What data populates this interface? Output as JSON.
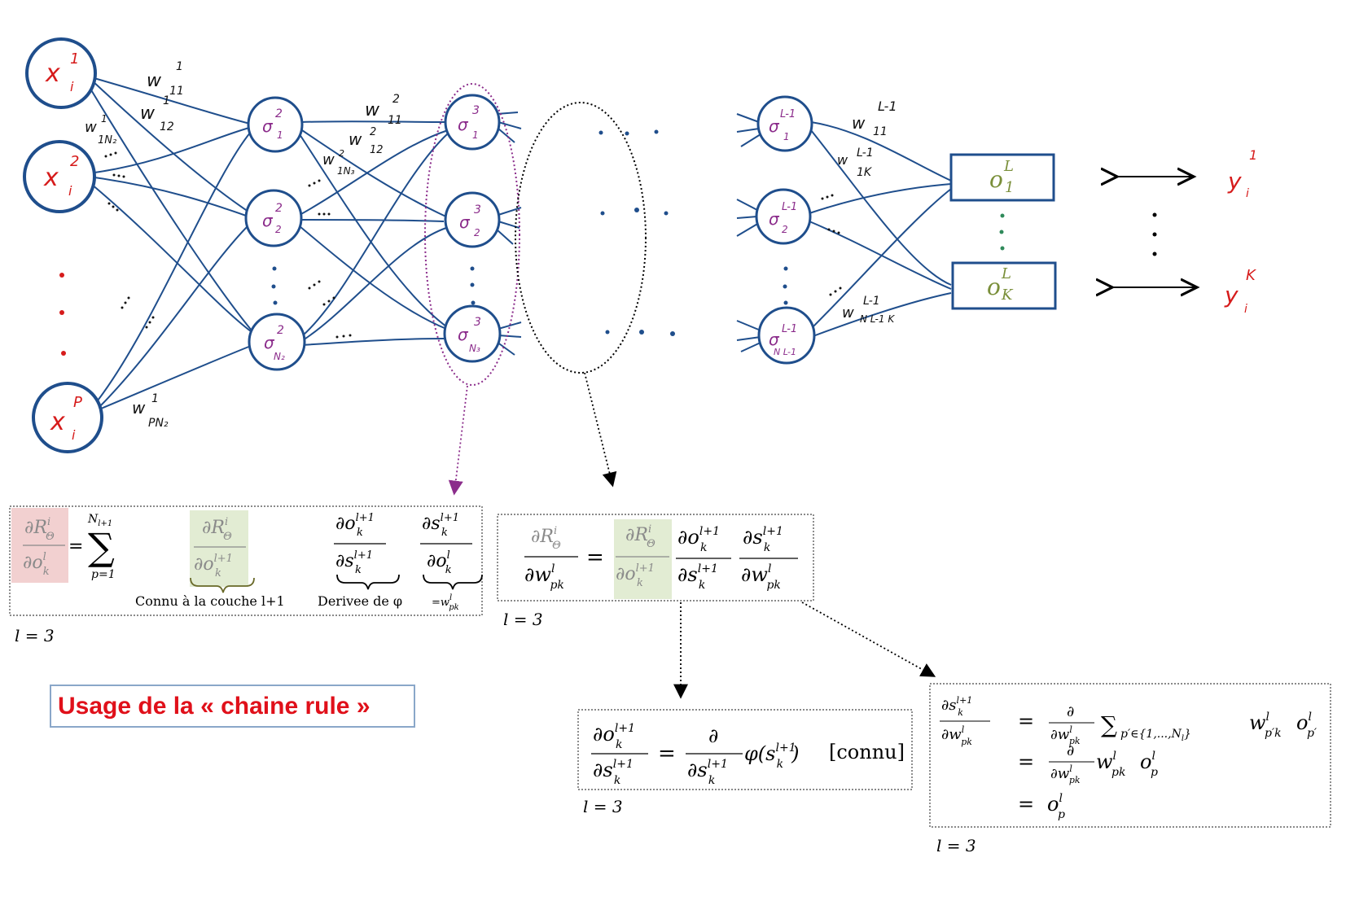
{
  "colors": {
    "network": "#1f4e8c",
    "input_label": "#d61b1b",
    "hidden_label": "#8b2c8b",
    "output_label": "#7a8f3a",
    "pink_highlight": "#f2d0d0",
    "green_highlight": "#e2ecd3",
    "usage_text": "#e0101a"
  },
  "network": {
    "inputs": [
      {
        "sym": "x",
        "sup": "1",
        "sub": "i"
      },
      {
        "sym": "x",
        "sup": "2",
        "sub": "i"
      },
      {
        "sym": "x",
        "sup": "P",
        "sub": "i"
      }
    ],
    "layer2": [
      {
        "sym": "σ",
        "sup": "2",
        "sub": "1"
      },
      {
        "sym": "σ",
        "sup": "2",
        "sub": "2"
      },
      {
        "sym": "σ",
        "sup": "2",
        "sub": "N₂"
      }
    ],
    "layer3": [
      {
        "sym": "σ",
        "sup": "3",
        "sub": "1"
      },
      {
        "sym": "σ",
        "sup": "3",
        "sub": "2"
      },
      {
        "sym": "σ",
        "sup": "3",
        "sub": "N₃"
      }
    ],
    "layerL1": [
      {
        "sym": "σ",
        "sup": "L-1",
        "sub": "1"
      },
      {
        "sym": "σ",
        "sup": "L-1",
        "sub": "2"
      },
      {
        "sym": "σ",
        "sup": "L-1",
        "sub": "N L-1"
      }
    ],
    "outputs": [
      {
        "sym": "o",
        "sup": "L",
        "sub": "1"
      },
      {
        "sym": "o",
        "sup": "L",
        "sub": "K"
      }
    ],
    "targets": [
      {
        "sym": "y",
        "sup": "1",
        "sub": "i"
      },
      {
        "sym": "y",
        "sup": "K",
        "sub": "i"
      }
    ],
    "weights": {
      "w11_1": {
        "base": "w",
        "sup": "1",
        "sub": "11"
      },
      "w12_1": {
        "base": "w",
        "sup": "1",
        "sub": "12"
      },
      "w1N2_1": {
        "base": "w",
        "sup": "1",
        "sub": "1N₂"
      },
      "wPN2_1": {
        "base": "w",
        "sup": "1",
        "sub": "PN₂"
      },
      "w11_2": {
        "base": "w",
        "sup": "2",
        "sub": "11"
      },
      "w12_2": {
        "base": "w",
        "sup": "2",
        "sub": "12"
      },
      "w1N3_2": {
        "base": "w",
        "sup": "2",
        "sub": "1N₃"
      },
      "w11_L1": {
        "base": "w",
        "sup": "L-1",
        "sub": "11"
      },
      "w1K_L1": {
        "base": "w",
        "sup": "L-1",
        "sub": "1K"
      },
      "wNK_L1": {
        "base": "w",
        "sup": "L-1",
        "sub": "N L-1 K"
      }
    }
  },
  "box1": {
    "lhs_num": "∂R",
    "lhs_num_sup": "i",
    "lhs_num_sub": "Θ",
    "lhs_den": "∂o",
    "lhs_den_sup": "l",
    "lhs_den_sub": "k",
    "eq": "=",
    "sum_top": "N",
    "sum_top_sub": "l+1",
    "sum_bottom": "p=1",
    "t1_num": "∂R",
    "t1_num_sup": "i",
    "t1_num_sub": "Θ",
    "t1_den": "∂o",
    "t1_den_sup": "l+1",
    "t1_den_sub": "k",
    "t2_num": "∂o",
    "t2_num_sup": "l+1",
    "t2_num_sub": "k",
    "t2_den": "∂s",
    "t2_den_sup": "l+1",
    "t2_den_sub": "k",
    "t3_num": "∂s",
    "t3_num_sup": "l+1",
    "t3_num_sub": "k",
    "t3_den": "∂o",
    "t3_den_sup": "l",
    "t3_den_sub": "k",
    "brace1_note": "Connu à la couche l+1",
    "brace2_note": "Derivee de φ",
    "brace3_note": "=w",
    "brace3_note_sup": "l",
    "brace3_note_sub": "pk",
    "layer_note": "l = 3"
  },
  "box2": {
    "lhs_num": "∂R",
    "lhs_num_sup": "i",
    "lhs_num_sub": "Θ",
    "lhs_den": "∂w",
    "lhs_den_sup": "l",
    "lhs_den_sub": "pk",
    "eq": "=",
    "t1_num": "∂R",
    "t1_num_sup": "i",
    "t1_num_sub": "Θ",
    "t1_den": "∂o",
    "t1_den_sup": "l+1",
    "t1_den_sub": "k",
    "t2_num": "∂o",
    "t2_num_sup": "l+1",
    "t2_num_sub": "k",
    "t2_den": "∂s",
    "t2_den_sup": "l+1",
    "t2_den_sub": "k",
    "t3_num": "∂s",
    "t3_num_sup": "l+1",
    "t3_num_sub": "k",
    "t3_den": "∂w",
    "t3_den_sup": "l",
    "t3_den_sub": "pk",
    "layer_note": "l = 3"
  },
  "box3": {
    "lhs_num": "∂o",
    "lhs_num_sup": "l+1",
    "lhs_num_sub": "k",
    "lhs_den": "∂s",
    "lhs_den_sup": "l+1",
    "lhs_den_sub": "k",
    "eq": "=",
    "op_num": "∂",
    "op_den": "∂s",
    "op_den_sup": "l+1",
    "op_den_sub": "k",
    "phi": "φ(s",
    "phi_sup": "l+1",
    "phi_sub": "k",
    "phi_close": ")",
    "connu": "[connu]",
    "layer_note": "l = 3"
  },
  "box4": {
    "lhs_num": "∂s",
    "lhs_num_sup": "l+1",
    "lhs_num_sub": "k",
    "lhs_den": "∂w",
    "lhs_den_sup": "l",
    "lhs_den_sub": "pk",
    "line1_eq": "=",
    "line1_op_num": "∂",
    "line1_op_den": "∂w",
    "line1_op_den_sup": "l",
    "line1_op_den_sub": "pk",
    "line1_sum": "∑",
    "line1_sum_sub": "p′∈{1,...,N",
    "line1_sum_sub_sub": "l",
    "line1_sum_sub_close": "}",
    "line1_w": "w",
    "line1_w_sup": "l",
    "line1_w_sub": "p′k",
    "line1_o": "o",
    "line1_o_sup": "l",
    "line1_o_sub": "p′",
    "line2_eq": "=",
    "line2_op_num": "∂",
    "line2_op_den": "∂w",
    "line2_op_den_sup": "l",
    "line2_op_den_sub": "pk",
    "line2_w": "w",
    "line2_w_sup": "l",
    "line2_w_sub": "pk",
    "line2_o": "o",
    "line2_o_sup": "l",
    "line2_o_sub": "p",
    "line3_eq": "=",
    "line3_o": "o",
    "line3_o_sup": "l",
    "line3_o_sub": "p",
    "layer_note": "l = 3"
  },
  "usage_label": "Usage de la « chaine rule »"
}
